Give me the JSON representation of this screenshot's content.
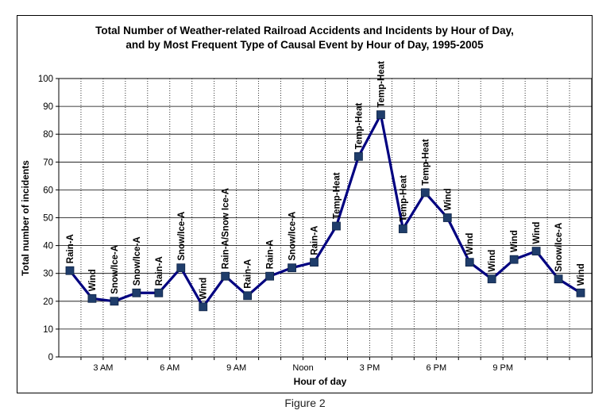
{
  "chart_data": {
    "type": "line",
    "title": [
      "Total Number of Weather-related Railroad Accidents and Incidents by Hour of Day,",
      "and by Most Frequent Type of Causal Event by Hour of Day, 1995-2005"
    ],
    "xlabel": "Hour of day",
    "ylabel": "Total number of incidents",
    "ylim": [
      0,
      100
    ],
    "yticks": [
      "0",
      "10",
      "20",
      "30",
      "40",
      "50",
      "60",
      "70",
      "80",
      "90",
      "100"
    ],
    "xtick_labels": [
      {
        "after_point": 2,
        "label": "3 AM"
      },
      {
        "after_point": 5,
        "label": "6 AM"
      },
      {
        "after_point": 8,
        "label": "9 AM"
      },
      {
        "after_point": 11,
        "label": "Noon"
      },
      {
        "after_point": 14,
        "label": "3 PM"
      },
      {
        "after_point": 17,
        "label": "6 PM"
      },
      {
        "after_point": 20,
        "label": "9 PM"
      }
    ],
    "grid": true,
    "series": [
      {
        "values": [
          31,
          21,
          20,
          23,
          23,
          32,
          18,
          29,
          22,
          29,
          32,
          34,
          47,
          72,
          87,
          46,
          59,
          50,
          34,
          28,
          35,
          38,
          28,
          23
        ],
        "labels": [
          "Rain-A",
          "Wind",
          "Snow/Ice-A",
          "Snow/Ice-A",
          "Rain-A",
          "Snow/Ice-A",
          "Wind",
          "Rain-A/Snow Ice-A",
          "Rain-A",
          "Rain-A",
          "Snow/Ice-A",
          "Rain-A",
          "Temp-Heat",
          "Temp-Heat",
          "Temp-Heat",
          "Temp-Heat",
          "Temp-Heat",
          "Wind",
          "Wind",
          "Wind",
          "Wind",
          "Wind",
          "Snow/Ice-A",
          "Wind"
        ],
        "color": "#000080",
        "marker_color": "#1f3d6b"
      }
    ]
  },
  "caption": "Figure 2"
}
